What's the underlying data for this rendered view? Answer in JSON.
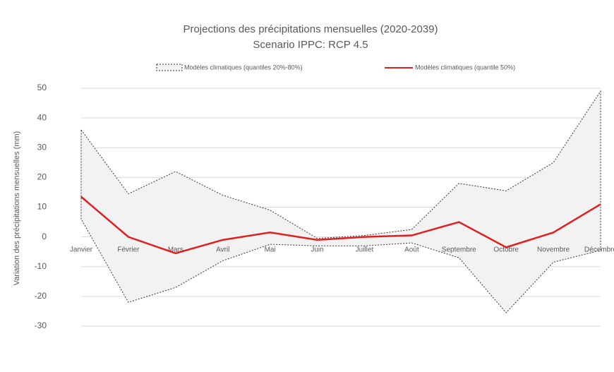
{
  "chart_data": {
    "type": "band-line",
    "title": "Projections des précipitations mensuelles (2020-2039)",
    "subtitle": "Scenario IPPC: RCP 4.5",
    "y_label": "Variation des précipitations mensuelles (mm)",
    "categories": [
      "Janvier",
      "Février",
      "Mars",
      "Avril",
      "Mai",
      "Juin",
      "Juillet",
      "Août",
      "Septembre",
      "Octobre",
      "Novembre",
      "Décembre"
    ],
    "series": [
      {
        "name": "Modèles climatiques (quantiles 20%-80%)",
        "color": "#333333",
        "fill": "#f2f2f2",
        "upper": [
          36,
          14.5,
          22,
          14,
          9,
          -0.5,
          0.5,
          2.5,
          18,
          15.5,
          25,
          49
        ],
        "lower": [
          6,
          -22,
          -17,
          -8,
          -2.5,
          -3,
          -3,
          -2,
          -7,
          -25.5,
          -8.5,
          -4.5
        ]
      },
      {
        "name": "Modèles climatiques (quantile 50%)",
        "color": "#e02020",
        "values": [
          13.5,
          0,
          -5.5,
          -1,
          1.5,
          -1,
          0,
          0.5,
          5,
          -3.5,
          1.5,
          11
        ]
      }
    ],
    "ylim": [
      -30,
      50
    ],
    "yticks": [
      -30,
      -20,
      -10,
      0,
      10,
      20,
      30,
      40,
      50
    ],
    "grid": true
  }
}
